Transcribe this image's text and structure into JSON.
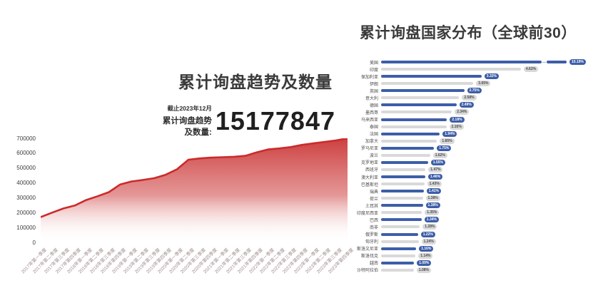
{
  "colors": {
    "accent_red": "#cb2b2b",
    "bar_blue": "#3d5ea8",
    "bar_gray": "#d9d9d9",
    "title_gray": "#3a3a3a"
  },
  "chart_data": [
    {
      "type": "area",
      "title": "累计询盘趋势及数量",
      "annotation": {
        "as_of": "截止2023年12月",
        "label": "累计询盘趋势及数量:",
        "total": "15177847"
      },
      "xlabel": "",
      "ylabel": "",
      "ylim": [
        0,
        700000
      ],
      "yticks": [
        0,
        100000,
        200000,
        300000,
        400000,
        500000,
        600000,
        700000
      ],
      "grid": false,
      "legend": "none",
      "line_color": "#cb2b2b",
      "categories": [
        "2017年第一季度",
        "2017年第二季度",
        "2017年第三季度",
        "2017年第四季度",
        "2018年第一季度",
        "2018年第二季度",
        "2018年第三季度",
        "2018年第四季度",
        "2019年第一季度",
        "2019年第二季度",
        "2019年第三季度",
        "2019年第四季度",
        "2020年第一季度",
        "2020年第二季度",
        "2020年第三季度",
        "2020年第四季度",
        "2021年第一季度",
        "2021年第二季度",
        "2021年第三季度",
        "2021年第四季度",
        "2022年第一季度",
        "2022年第二季度",
        "2022年第三季度",
        "2022年第四季度",
        "2023年第一季度",
        "2023年第二季度",
        "2023年第三季度",
        "2023年第四季度"
      ],
      "values": [
        170000,
        200000,
        228000,
        248000,
        285000,
        310000,
        338000,
        390000,
        410000,
        420000,
        432000,
        455000,
        492000,
        556000,
        565000,
        570000,
        573000,
        576000,
        582000,
        605000,
        625000,
        632000,
        641000,
        656000,
        666000,
        676000,
        686000,
        700000
      ]
    },
    {
      "type": "bar",
      "orientation": "horizontal",
      "title": "累计询盘国家分布（全球前30）",
      "xlabel": "",
      "ylabel": "",
      "legend": "none",
      "broken_bar_index": 0,
      "categories": [
        "美国",
        "印度",
        "保加利亚",
        "伊朗",
        "英国",
        "意大利",
        "德国",
        "墨西哥",
        "马来西亚",
        "泰国",
        "法国",
        "加拿大",
        "罗马尼亚",
        "波兰",
        "克罗地亚",
        "西班牙",
        "澳大利亚",
        "巴基斯坦",
        "瑞典",
        "荷兰",
        "土耳其",
        "印度尼西亚",
        "巴西",
        "南非",
        "俄罗斯",
        "匈牙利",
        "斯洛文尼亚",
        "斯洛伐克",
        "越南",
        "沙特阿拉伯"
      ],
      "values": [
        10.19,
        4.62,
        3.32,
        3.05,
        2.75,
        2.58,
        2.49,
        2.34,
        2.18,
        2.16,
        1.94,
        1.85,
        1.75,
        1.62,
        1.55,
        1.47,
        1.46,
        1.43,
        1.41,
        1.38,
        1.38,
        1.35,
        1.34,
        1.28,
        1.22,
        1.24,
        1.16,
        1.14,
        1.09,
        1.08
      ],
      "value_labels": [
        "10.19%",
        "4.62%",
        "3.32%",
        "3.05%",
        "2.75%",
        "2.58%",
        "2.49%",
        "2.34%",
        "2.18%",
        "2.16%",
        "1.94%",
        "1.85%",
        "1.75%",
        "1.62%",
        "1.55%",
        "1.47%",
        "1.46%",
        "1.43%",
        "1.41%",
        "1.38%",
        "1.38%",
        "1.35%",
        "1.34%",
        "1.28%",
        "1.22%",
        "1.24%",
        "1.16%",
        "1.14%",
        "1.09%",
        "1.08%"
      ]
    }
  ]
}
